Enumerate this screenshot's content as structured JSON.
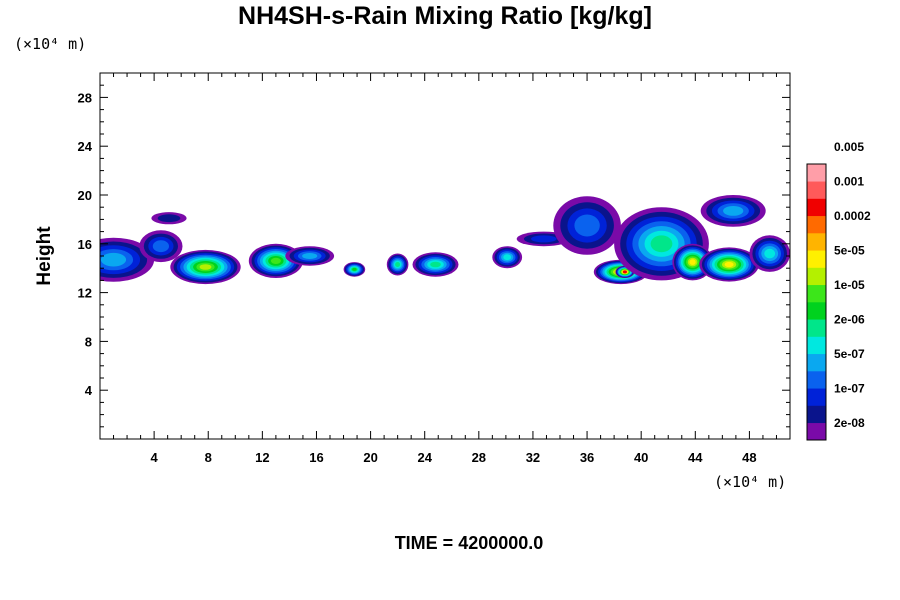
{
  "chart_data": {
    "type": "heatmap",
    "title": "NH4SH-s-Rain Mixing Ratio [kg/kg]",
    "ylabel": "Height",
    "x_unit": "(×10⁴ m)",
    "y_unit": "(×10⁴ m)",
    "time_label": "TIME = 4200000.0",
    "xlim": [
      0,
      51
    ],
    "ylim": [
      0,
      30
    ],
    "x_ticks": [
      4,
      8,
      12,
      16,
      20,
      24,
      28,
      32,
      36,
      40,
      44,
      48
    ],
    "y_ticks": [
      4,
      8,
      12,
      16,
      20,
      24,
      28
    ],
    "x_tick_labels": [
      "4",
      "8",
      "12",
      "16",
      "20",
      "24",
      "28",
      "32",
      "36",
      "40",
      "44",
      "48"
    ],
    "y_tick_labels": [
      "4",
      "8",
      "12",
      "16",
      "20",
      "24",
      "28"
    ],
    "levels": [
      "2e-08",
      "1e-07",
      "5e-07",
      "2e-06",
      "1e-05",
      "5e-05",
      "0.0002",
      "0.001",
      "0.005"
    ],
    "colorbar": {
      "colors": [
        "#7a0aa8",
        "#0a148c",
        "#0022d8",
        "#0a62ee",
        "#0aa8f0",
        "#00e8e0",
        "#00e68a",
        "#00d21e",
        "#3ce61a",
        "#b4f000",
        "#fff000",
        "#ffb400",
        "#ff6a00",
        "#f00000",
        "#ff5a5a",
        "#ff9ea8"
      ],
      "labels": [
        "2e-08",
        "1e-07",
        "5e-07",
        "2e-06",
        "1e-05",
        "5e-05",
        "0.0002",
        "0.001",
        "0.005"
      ]
    },
    "features": [
      {
        "x": 0.2,
        "y": 15.8,
        "w": 0.7,
        "h": 0.5,
        "band": 3
      },
      {
        "x": 1.0,
        "y": 14.7,
        "w": 3.0,
        "h": 1.8,
        "band": 4
      },
      {
        "x": 4.5,
        "y": 15.8,
        "w": 1.6,
        "h": 1.3,
        "band": 3
      },
      {
        "x": 5.1,
        "y": 18.1,
        "w": 1.3,
        "h": 0.5,
        "band": 1
      },
      {
        "x": 7.8,
        "y": 14.1,
        "w": 2.6,
        "h": 1.4,
        "band": 9
      },
      {
        "x": 13.0,
        "y": 14.6,
        "w": 2.0,
        "h": 1.4,
        "band": 8
      },
      {
        "x": 15.5,
        "y": 15.0,
        "w": 1.8,
        "h": 0.8,
        "band": 4
      },
      {
        "x": 18.8,
        "y": 13.9,
        "w": 0.8,
        "h": 0.6,
        "band": 7
      },
      {
        "x": 22.0,
        "y": 14.3,
        "w": 0.8,
        "h": 0.9,
        "band": 6
      },
      {
        "x": 24.8,
        "y": 14.3,
        "w": 1.7,
        "h": 1.0,
        "band": 6
      },
      {
        "x": 30.1,
        "y": 14.9,
        "w": 1.1,
        "h": 0.9,
        "band": 5
      },
      {
        "x": 32.8,
        "y": 16.4,
        "w": 2.0,
        "h": 0.6,
        "band": 2
      },
      {
        "x": 36.0,
        "y": 17.5,
        "w": 2.5,
        "h": 2.4,
        "band": 3
      },
      {
        "x": 38.5,
        "y": 13.7,
        "w": 2.0,
        "h": 1.0,
        "band": 11
      },
      {
        "x": 38.8,
        "y": 13.7,
        "w": 0.7,
        "h": 0.5,
        "band": 13
      },
      {
        "x": 41.5,
        "y": 16.0,
        "w": 3.5,
        "h": 3.0,
        "band": 6
      },
      {
        "x": 43.8,
        "y": 14.5,
        "w": 1.5,
        "h": 1.5,
        "band": 10
      },
      {
        "x": 46.5,
        "y": 14.3,
        "w": 2.2,
        "h": 1.4,
        "band": 10
      },
      {
        "x": 46.8,
        "y": 18.7,
        "w": 2.4,
        "h": 1.3,
        "band": 4
      },
      {
        "x": 49.5,
        "y": 15.2,
        "w": 1.5,
        "h": 1.5,
        "band": 5
      }
    ]
  }
}
